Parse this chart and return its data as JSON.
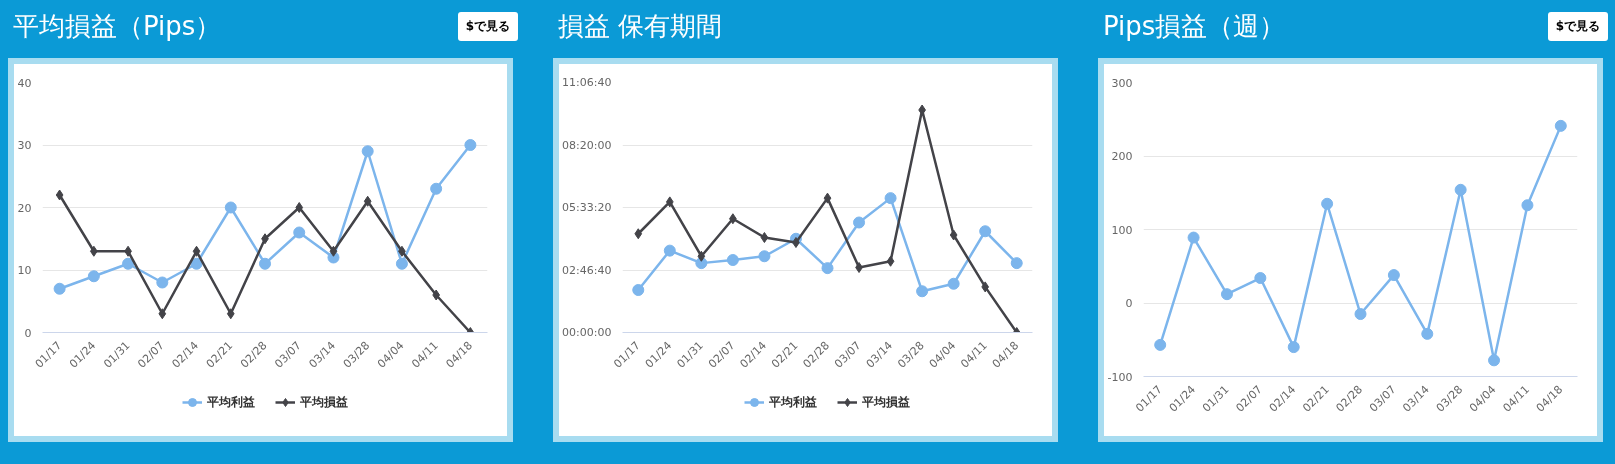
{
  "chart_data": [
    {
      "type": "line",
      "title": "平均損益（Pips）",
      "annotations": [
        "$で見る"
      ],
      "categories": [
        "01/17",
        "01/24",
        "01/31",
        "02/07",
        "02/14",
        "02/21",
        "02/28",
        "03/07",
        "03/14",
        "03/28",
        "04/04",
        "04/11",
        "04/18"
      ],
      "series": [
        {
          "name": "平均利益",
          "color": "#7cb5ec",
          "marker": "circle",
          "values": [
            7,
            9,
            11,
            8,
            11,
            20,
            11,
            16,
            12,
            29,
            11,
            23,
            30
          ]
        },
        {
          "name": "平均損益",
          "color": "#434348",
          "marker": "diamond",
          "values": [
            22,
            13,
            13,
            3,
            13,
            3,
            15,
            20,
            13,
            21,
            13,
            6,
            0
          ]
        }
      ],
      "ylim": [
        0,
        40
      ],
      "yticks": [
        0,
        10,
        20,
        30,
        40
      ],
      "grid": "y",
      "legend": "bottom",
      "line_style": "solid"
    },
    {
      "type": "line",
      "title": "損益 保有期間",
      "categories": [
        "01/17",
        "01/24",
        "01/31",
        "02/07",
        "02/14",
        "02/21",
        "02/28",
        "03/07",
        "03/14",
        "03/28",
        "04/04",
        "04/11",
        "04/18"
      ],
      "series": [
        {
          "name": "平均利益",
          "color": "#7cb5ec",
          "marker": "circle",
          "values": [
            6800,
            13100,
            11100,
            11600,
            12200,
            15000,
            10300,
            17600,
            21500,
            6600,
            7800,
            16200,
            11100
          ]
        },
        {
          "name": "平均損益",
          "color": "#434348",
          "marker": "diamond",
          "values": [
            15800,
            20900,
            12200,
            18200,
            15200,
            14400,
            21500,
            10400,
            11400,
            35600,
            15600,
            7300,
            0
          ]
        }
      ],
      "ylim": [
        0,
        40000
      ],
      "yticks": [
        {
          "value": 0,
          "label": "00:00:00"
        },
        {
          "value": 10000,
          "label": "02:46:40"
        },
        {
          "value": 20000,
          "label": "05:33:20"
        },
        {
          "value": 30000,
          "label": "08:20:00"
        },
        {
          "value": 40000,
          "label": "11:06:40"
        }
      ],
      "grid": "y",
      "legend": "bottom",
      "line_style": "solid"
    },
    {
      "type": "line",
      "title": "Pips損益（週）",
      "annotations": [
        "$で見る"
      ],
      "categories": [
        "01/17",
        "01/24",
        "01/31",
        "02/07",
        "02/14",
        "02/21",
        "02/28",
        "03/07",
        "03/14",
        "03/28",
        "04/04",
        "04/11",
        "04/18"
      ],
      "series": [
        {
          "color": "#7cb5ec",
          "marker": "circle",
          "values": [
            -57,
            89,
            12,
            34,
            -60,
            135,
            -15,
            38,
            -42,
            154,
            -78,
            133,
            241
          ]
        }
      ],
      "ylim": [
        -100,
        300
      ],
      "yticks": [
        -100,
        0,
        100,
        200,
        300
      ],
      "grid": "y",
      "line_style": "solid"
    }
  ]
}
